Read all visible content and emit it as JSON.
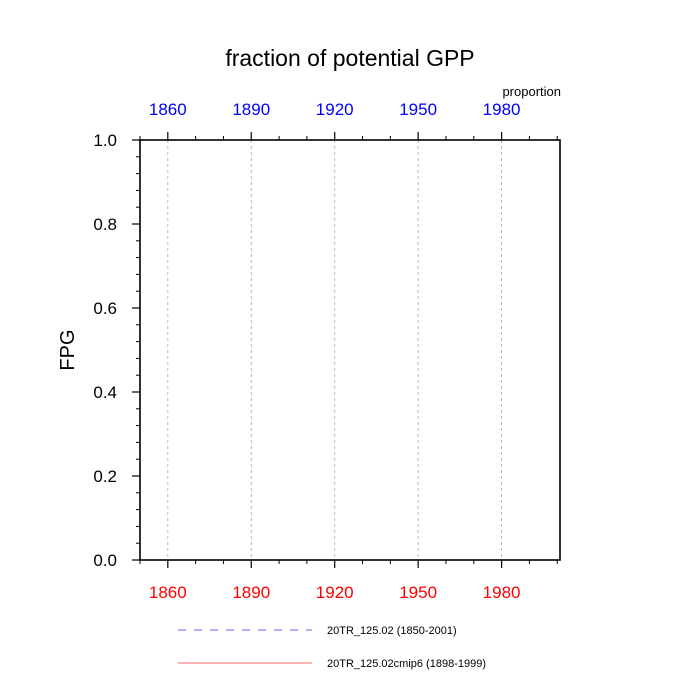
{
  "chart_data": {
    "type": "line",
    "title": "fraction of potential GPP",
    "ylabel": "FPG",
    "units_label": "proportion",
    "xlim": [
      1850,
      2001
    ],
    "ylim": [
      0,
      1
    ],
    "x_ticks": [
      1860,
      1890,
      1920,
      1950,
      1980
    ],
    "x_tick_labels": [
      "1860",
      "1890",
      "1920",
      "1950",
      "1980"
    ],
    "y_ticks": [
      0,
      0.2,
      0.4,
      0.6,
      0.8,
      1.0
    ],
    "y_tick_labels": [
      "0.0",
      "0.2",
      "0.4",
      "0.6",
      "0.8",
      "1.0"
    ],
    "grid": "vertical-dashed",
    "top_axis_color": "#0000ff",
    "bottom_axis_color": "#ff0000",
    "series": [
      {
        "name": "20TR_125.02 (1850-2001)",
        "color": "#6666ff",
        "dash": "dashed",
        "x": [],
        "y": []
      },
      {
        "name": "20TR_125.02cmip6 (1898-1999)",
        "color": "#ff6666",
        "dash": "solid",
        "x": [],
        "y": []
      }
    ],
    "legend": "bottom"
  }
}
